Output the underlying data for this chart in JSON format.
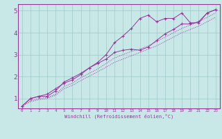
{
  "xlabel": "Windchill (Refroidissement éolien,°C)",
  "background_color": "#c8e8e8",
  "line_color": "#993399",
  "grid_color": "#a0c8c8",
  "xlim": [
    -0.5,
    23.5
  ],
  "ylim": [
    0.55,
    5.3
  ],
  "yticks": [
    1,
    2,
    3,
    4,
    5
  ],
  "xticks": [
    0,
    1,
    2,
    3,
    4,
    5,
    6,
    7,
    8,
    9,
    10,
    11,
    12,
    13,
    14,
    15,
    16,
    17,
    18,
    19,
    20,
    21,
    22,
    23
  ],
  "line1_x": [
    0,
    1,
    2,
    3,
    4,
    5,
    6,
    7,
    8,
    9,
    10,
    11,
    12,
    13,
    14,
    15,
    16,
    17,
    18,
    19,
    20,
    21,
    22,
    23
  ],
  "line1_y": [
    0.65,
    1.0,
    1.1,
    1.1,
    1.35,
    1.75,
    1.95,
    2.15,
    2.4,
    2.65,
    3.0,
    3.55,
    3.85,
    4.2,
    4.65,
    4.8,
    4.5,
    4.65,
    4.65,
    4.9,
    4.45,
    4.45,
    4.9,
    5.05
  ],
  "line2_x": [
    0,
    1,
    2,
    3,
    4,
    5,
    6,
    7,
    8,
    9,
    10,
    11,
    12,
    13,
    14,
    15,
    16,
    17,
    18,
    19,
    20,
    21,
    22,
    23
  ],
  "line2_y": [
    0.65,
    1.0,
    1.1,
    1.2,
    1.45,
    1.7,
    1.85,
    2.1,
    2.4,
    2.6,
    2.8,
    3.1,
    3.2,
    3.25,
    3.2,
    3.35,
    3.65,
    3.95,
    4.15,
    4.4,
    4.4,
    4.5,
    4.9,
    5.05
  ],
  "line3_x": [
    0,
    1,
    2,
    3,
    4,
    5,
    6,
    7,
    8,
    9,
    10,
    11,
    12,
    13,
    14,
    15,
    16,
    17,
    18,
    19,
    20,
    21,
    22,
    23
  ],
  "line3_y": [
    0.65,
    0.9,
    1.0,
    1.05,
    1.2,
    1.55,
    1.7,
    1.95,
    2.15,
    2.35,
    2.6,
    2.85,
    3.0,
    3.15,
    3.25,
    3.4,
    3.6,
    3.8,
    4.0,
    4.2,
    4.35,
    4.5,
    4.7,
    4.9
  ],
  "line4_x": [
    0,
    1,
    2,
    3,
    4,
    5,
    6,
    7,
    8,
    9,
    10,
    11,
    12,
    13,
    14,
    15,
    16,
    17,
    18,
    19,
    20,
    21,
    22,
    23
  ],
  "line4_y": [
    0.65,
    0.85,
    0.95,
    1.0,
    1.15,
    1.45,
    1.6,
    1.82,
    2.02,
    2.22,
    2.43,
    2.65,
    2.8,
    2.95,
    3.1,
    3.25,
    3.4,
    3.6,
    3.8,
    4.0,
    4.15,
    4.3,
    4.5,
    4.7
  ]
}
